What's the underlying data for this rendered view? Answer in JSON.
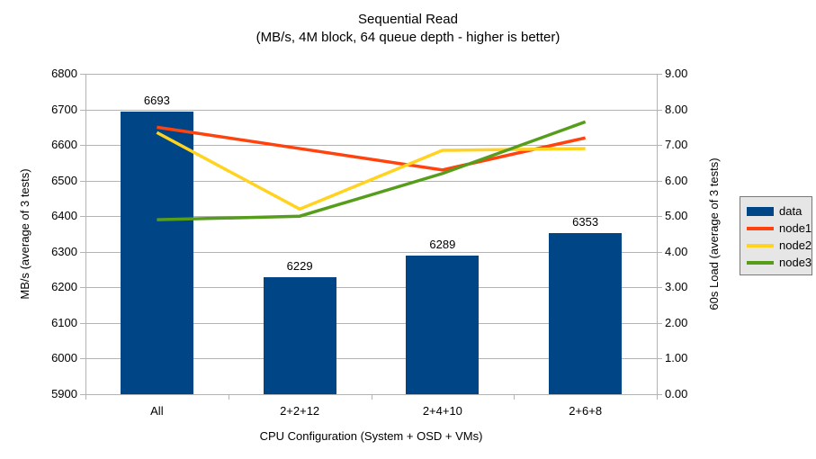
{
  "title": "Sequential Read",
  "subtitle": "(MB/s, 4M block, 64 queue depth - higher is better)",
  "chart_data": {
    "type": "combo-bar-line",
    "categories": [
      "All",
      "2+2+12",
      "2+4+10",
      "2+6+8"
    ],
    "xlabel": "CPU Configuration (System + OSD + VMs)",
    "left_axis": {
      "label": "MB/s (average of 3 tests)",
      "min": 5900,
      "max": 6800,
      "step": 100
    },
    "right_axis": {
      "label": "60s Load (average of 3 tests)",
      "min": 0,
      "max": 9,
      "step": 1
    },
    "bar_series": {
      "name": "data",
      "color": "#004586",
      "axis": "left",
      "values": [
        6693,
        6229,
        6289,
        6353
      ],
      "data_labels": [
        "6693",
        "6229",
        "6289",
        "6353"
      ]
    },
    "line_series": [
      {
        "name": "node1",
        "color": "#ff420e",
        "axis": "right",
        "values": [
          7.5,
          6.9,
          6.3,
          7.2
        ]
      },
      {
        "name": "node2",
        "color": "#ffd320",
        "axis": "right",
        "values": [
          7.35,
          5.2,
          6.85,
          6.9
        ]
      },
      {
        "name": "node3",
        "color": "#579d1c",
        "axis": "right",
        "values": [
          4.9,
          5.0,
          6.2,
          7.65
        ]
      }
    ],
    "legend": [
      "data",
      "node1",
      "node2",
      "node3"
    ],
    "legend_position": "right",
    "grid": true,
    "gridline_color": "#b3b3b3",
    "background_color": "#ffffff"
  }
}
